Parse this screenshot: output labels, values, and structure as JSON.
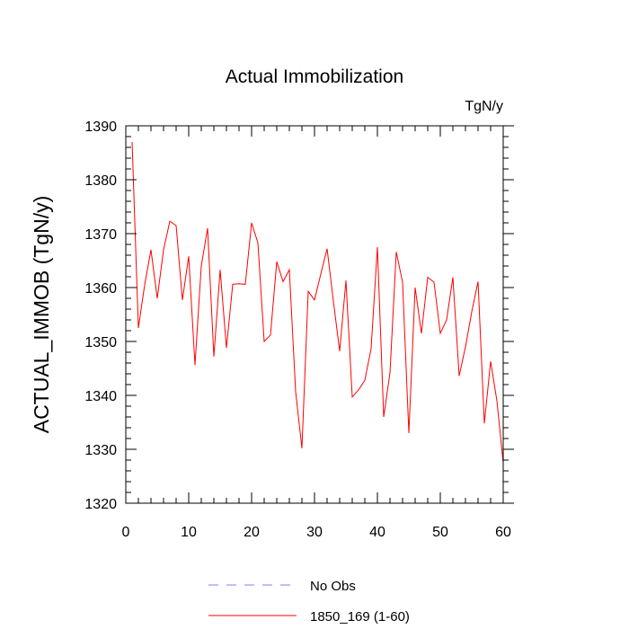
{
  "chart_data": {
    "type": "line",
    "title": "Actual Immobilization",
    "units_label": "TgN/y",
    "xlabel": "",
    "ylabel": "ACTUAL_IMMOB  (TgN/y)",
    "xlim": [
      0,
      60
    ],
    "ylim": [
      1320,
      1390
    ],
    "x_ticks": [
      0,
      10,
      20,
      30,
      40,
      50,
      60
    ],
    "y_ticks": [
      1320,
      1330,
      1340,
      1350,
      1360,
      1370,
      1380,
      1390
    ],
    "x_tick_labels": [
      "0",
      "10",
      "20",
      "30",
      "40",
      "50",
      "60"
    ],
    "y_tick_labels": [
      "1320",
      "1330",
      "1340",
      "1350",
      "1360",
      "1370",
      "1380",
      "1390"
    ],
    "grid": false,
    "legend_position": "bottom-center",
    "series": [
      {
        "name": "No Obs",
        "style": "dashed",
        "color": "#8080ff",
        "x": [],
        "values": []
      },
      {
        "name": "1850_169 (1-60)",
        "style": "solid",
        "color": "#ff0000",
        "x": [
          1,
          2,
          3,
          4,
          5,
          6,
          7,
          8,
          9,
          10,
          11,
          12,
          13,
          14,
          15,
          16,
          17,
          18,
          19,
          20,
          21,
          22,
          23,
          24,
          25,
          26,
          27,
          28,
          29,
          30,
          31,
          32,
          33,
          34,
          35,
          36,
          37,
          38,
          39,
          40,
          41,
          42,
          43,
          44,
          45,
          46,
          47,
          48,
          49,
          50,
          51,
          52,
          53,
          54,
          55,
          56,
          57,
          58,
          59,
          60
        ],
        "values": [
          1387,
          1352.5,
          1360.5,
          1367,
          1358,
          1367,
          1372.3,
          1371.5,
          1357.7,
          1365.8,
          1345.6,
          1364,
          1371,
          1347.2,
          1363.3,
          1348.8,
          1360.6,
          1360.7,
          1360.6,
          1372,
          1368.3,
          1350,
          1351.2,
          1364.8,
          1361.1,
          1363.3,
          1340.7,
          1330.2,
          1359.3,
          1357.7,
          1362.5,
          1367.2,
          1357.5,
          1348.2,
          1361.3,
          1339.7,
          1341,
          1342.8,
          1348.7,
          1367.5,
          1336,
          1344.2,
          1366.6,
          1361,
          1333,
          1360,
          1351.5,
          1361.9,
          1361,
          1351.5,
          1354,
          1361.9,
          1343.6,
          1349,
          1355.5,
          1361.1,
          1334.8,
          1346.3,
          1339,
          1327.5
        ]
      }
    ]
  }
}
